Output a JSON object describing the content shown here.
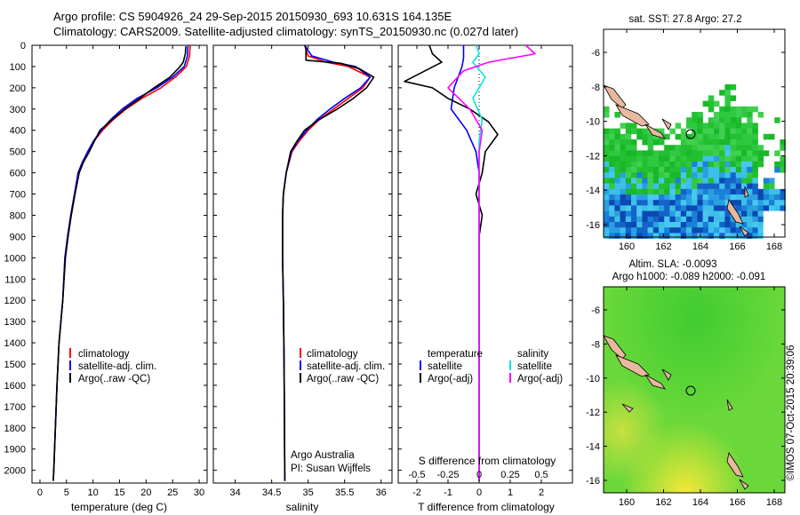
{
  "header": {
    "line1": "Argo profile: CS 5904926_24 29-Sep-2015 20150930_693 10.631S 164.135E",
    "line2": "Climatology: CARS2009. Satellite-adjusted climatology: synTS_20150930.nc (0.027d later)"
  },
  "colors": {
    "climatology": "#ff0000",
    "satellite": "#0000ff",
    "argo": "#000000",
    "sal_satellite": "#00e5e5",
    "sal_argo": "#ff00ff"
  },
  "depth_axis": {
    "ticks": [
      0,
      100,
      200,
      300,
      400,
      500,
      600,
      700,
      800,
      900,
      1000,
      1100,
      1200,
      1300,
      1400,
      1500,
      1600,
      1700,
      1800,
      1900,
      2000
    ],
    "ylim": [
      0,
      2060
    ]
  },
  "chart_data": [
    {
      "type": "line",
      "panel": "temperature",
      "xlabel": "temperature (deg C)",
      "ylabel": "",
      "xlim": [
        -1.5,
        31.5
      ],
      "ylim": [
        2060,
        0
      ],
      "xticks": [
        0,
        5,
        10,
        15,
        20,
        25,
        30
      ],
      "legend": [
        "climatology",
        "satellite-adj. clim.",
        "Argo(..raw -QC)"
      ],
      "series": [
        {
          "name": "climatology",
          "color": "#ff0000",
          "points": [
            [
              28.3,
              0
            ],
            [
              28.2,
              50
            ],
            [
              27.6,
              100
            ],
            [
              25.5,
              150
            ],
            [
              22.8,
              200
            ],
            [
              19.2,
              250
            ],
            [
              16.2,
              300
            ],
            [
              13.8,
              350
            ],
            [
              11.8,
              400
            ],
            [
              10.2,
              450
            ],
            [
              9.0,
              500
            ],
            [
              8.0,
              550
            ],
            [
              7.2,
              600
            ],
            [
              6.5,
              700
            ],
            [
              5.8,
              800
            ],
            [
              5.2,
              900
            ],
            [
              4.7,
              1000
            ],
            [
              4.3,
              1200
            ],
            [
              3.6,
              1400
            ],
            [
              3.2,
              1600
            ],
            [
              2.9,
              1800
            ],
            [
              2.6,
              2000
            ],
            [
              2.5,
              2050
            ]
          ]
        },
        {
          "name": "satellite-adj. clim.",
          "color": "#0000ff",
          "points": [
            [
              27.9,
              0
            ],
            [
              27.8,
              50
            ],
            [
              27.2,
              100
            ],
            [
              25.0,
              150
            ],
            [
              22.0,
              200
            ],
            [
              18.3,
              250
            ],
            [
              15.5,
              300
            ],
            [
              13.3,
              350
            ],
            [
              11.6,
              400
            ],
            [
              10.1,
              450
            ],
            [
              9.0,
              500
            ],
            [
              8.0,
              550
            ],
            [
              7.2,
              600
            ],
            [
              6.5,
              700
            ],
            [
              5.8,
              800
            ],
            [
              5.2,
              900
            ],
            [
              4.7,
              1000
            ],
            [
              4.3,
              1200
            ],
            [
              3.6,
              1400
            ],
            [
              3.2,
              1600
            ],
            [
              2.9,
              1800
            ],
            [
              2.6,
              2000
            ],
            [
              2.5,
              2050
            ]
          ]
        },
        {
          "name": "Argo(..raw -QC)",
          "color": "#000000",
          "points": [
            [
              27.5,
              5
            ],
            [
              27.4,
              40
            ],
            [
              27.2,
              60
            ],
            [
              27.0,
              80
            ],
            [
              26.4,
              100
            ],
            [
              24.5,
              150
            ],
            [
              21.5,
              200
            ],
            [
              18.8,
              250
            ],
            [
              16.0,
              300
            ],
            [
              13.6,
              350
            ],
            [
              11.3,
              400
            ],
            [
              10.3,
              450
            ],
            [
              9.3,
              500
            ],
            [
              8.2,
              550
            ],
            [
              7.4,
              600
            ],
            [
              6.6,
              700
            ],
            [
              5.9,
              800
            ],
            [
              5.3,
              900
            ],
            [
              4.8,
              1000
            ],
            [
              4.3,
              1200
            ],
            [
              3.6,
              1400
            ],
            [
              3.2,
              1600
            ],
            [
              2.9,
              1800
            ],
            [
              2.6,
              2000
            ],
            [
              2.5,
              2050
            ]
          ]
        }
      ]
    },
    {
      "type": "line",
      "panel": "salinity",
      "xlabel": "salinity",
      "ylabel": "",
      "xlim": [
        33.7,
        36.15
      ],
      "ylim": [
        2060,
        0
      ],
      "xticks": [
        34,
        34.5,
        35,
        35.5,
        36
      ],
      "xticklabels": [
        "34",
        "34.5",
        "35",
        "35.5",
        "36"
      ],
      "legend": [
        "climatology",
        "satellite-adj. clim.",
        "Argo(..raw -QC)"
      ],
      "annotation": [
        "Argo Australia",
        "PI: Susan Wijffels"
      ],
      "series": [
        {
          "name": "climatology",
          "color": "#ff0000",
          "points": [
            [
              34.95,
              0
            ],
            [
              35.0,
              50
            ],
            [
              35.25,
              80
            ],
            [
              35.55,
              100
            ],
            [
              35.85,
              150
            ],
            [
              35.75,
              200
            ],
            [
              35.55,
              250
            ],
            [
              35.35,
              300
            ],
            [
              35.15,
              350
            ],
            [
              35.0,
              400
            ],
            [
              34.88,
              450
            ],
            [
              34.78,
              500
            ],
            [
              34.7,
              600
            ],
            [
              34.66,
              700
            ],
            [
              34.65,
              800
            ],
            [
              34.65,
              1000
            ],
            [
              34.66,
              1200
            ],
            [
              34.67,
              1500
            ],
            [
              34.68,
              2050
            ]
          ]
        },
        {
          "name": "satellite-adj. clim.",
          "color": "#0000ff",
          "points": [
            [
              34.95,
              0
            ],
            [
              35.05,
              50
            ],
            [
              35.35,
              80
            ],
            [
              35.65,
              100
            ],
            [
              35.85,
              150
            ],
            [
              35.72,
              200
            ],
            [
              35.5,
              250
            ],
            [
              35.3,
              300
            ],
            [
              35.12,
              350
            ],
            [
              34.98,
              400
            ],
            [
              34.86,
              450
            ],
            [
              34.77,
              500
            ],
            [
              34.7,
              600
            ],
            [
              34.66,
              700
            ],
            [
              34.65,
              800
            ],
            [
              34.65,
              1000
            ],
            [
              34.66,
              1200
            ],
            [
              34.67,
              1500
            ],
            [
              34.68,
              2050
            ]
          ]
        },
        {
          "name": "Argo(..raw -QC)",
          "color": "#000000",
          "points": [
            [
              34.97,
              5
            ],
            [
              34.97,
              50
            ],
            [
              34.97,
              70
            ],
            [
              35.45,
              85
            ],
            [
              35.7,
              110
            ],
            [
              35.9,
              150
            ],
            [
              35.8,
              200
            ],
            [
              35.62,
              250
            ],
            [
              35.4,
              300
            ],
            [
              35.15,
              350
            ],
            [
              34.95,
              400
            ],
            [
              34.85,
              450
            ],
            [
              34.76,
              500
            ],
            [
              34.7,
              600
            ],
            [
              34.66,
              700
            ],
            [
              34.65,
              800
            ],
            [
              34.65,
              1000
            ],
            [
              34.66,
              1200
            ],
            [
              34.67,
              1500
            ],
            [
              34.68,
              2050
            ]
          ]
        }
      ]
    },
    {
      "type": "line",
      "panel": "differences",
      "xlabel": "T difference from climatology",
      "xlabel_top": "S difference from climatology",
      "ylabel": "",
      "xlim": [
        -2.6,
        3.0
      ],
      "ylim": [
        2060,
        0
      ],
      "xticks": [
        -2,
        -1,
        0,
        1,
        2
      ],
      "xticks_s": [
        -0.5,
        -0.25,
        0,
        0.25,
        0.5
      ],
      "xticks_s_labels": [
        "-0.5",
        "-0.25",
        "0",
        "0.25",
        "0.5"
      ],
      "legend_title_t": "temperature",
      "legend_title_s": "salinity",
      "legend": [
        "satellite",
        "Argo(-adj)",
        "satellite",
        "Argo(-adj)"
      ],
      "series": [
        {
          "name": "T satellite",
          "color": "#0000ff",
          "points": [
            [
              -0.5,
              0
            ],
            [
              -0.5,
              60
            ],
            [
              -0.55,
              100
            ],
            [
              -0.8,
              200
            ],
            [
              -0.9,
              300
            ],
            [
              -0.4,
              400
            ],
            [
              -0.1,
              500
            ],
            [
              0,
              600
            ],
            [
              0,
              2050
            ]
          ]
        },
        {
          "name": "T Argo(-adj)",
          "color": "#000000",
          "points": [
            [
              -1.6,
              0
            ],
            [
              -1.5,
              40
            ],
            [
              -1.2,
              80
            ],
            [
              -2.4,
              170
            ],
            [
              -1.5,
              200
            ],
            [
              -1.0,
              250
            ],
            [
              -0.3,
              300
            ],
            [
              0.3,
              360
            ],
            [
              0.6,
              420
            ],
            [
              0.2,
              500
            ],
            [
              0.1,
              600
            ],
            [
              -0.1,
              700
            ],
            [
              0.1,
              800
            ],
            [
              0,
              900
            ],
            [
              0,
              1000
            ],
            [
              0,
              2050
            ]
          ]
        },
        {
          "name": "S satellite",
          "color": "#00e5e5",
          "points": [
            [
              -0.1,
              0
            ],
            [
              0,
              40
            ],
            [
              -0.2,
              80
            ],
            [
              0.2,
              150
            ],
            [
              -0.2,
              250
            ],
            [
              0.1,
              350
            ],
            [
              0,
              450
            ],
            [
              0,
              2050
            ]
          ]
        },
        {
          "name": "S Argo(-adj)",
          "color": "#ff00ff",
          "points": [
            [
              1.5,
              0
            ],
            [
              1.8,
              40
            ],
            [
              0.3,
              80
            ],
            [
              -0.5,
              120
            ],
            [
              -1.0,
              200
            ],
            [
              -0.3,
              300
            ],
            [
              0.1,
              400
            ],
            [
              0,
              500
            ],
            [
              0,
              2050
            ]
          ]
        }
      ]
    }
  ],
  "maps": {
    "top": {
      "title": "sat. SST: 27.8  Argo: 27.2",
      "yticks": [
        "-6",
        "-8",
        "-10",
        "-12",
        "-14",
        "-16"
      ],
      "xticks": [
        "160",
        "162",
        "164",
        "166",
        "168"
      ]
    },
    "bottom": {
      "title1": "Altim. SLA: -0.0093",
      "title2": "Argo h1000: -0.089 h2000: -0.091",
      "yticks": [
        "-6",
        "-8",
        "-10",
        "-12",
        "-14",
        "-16"
      ],
      "xticks": [
        "160",
        "162",
        "164",
        "166",
        "168"
      ]
    }
  },
  "credit": "©IMOS 07-Oct-2015 20:39:06"
}
